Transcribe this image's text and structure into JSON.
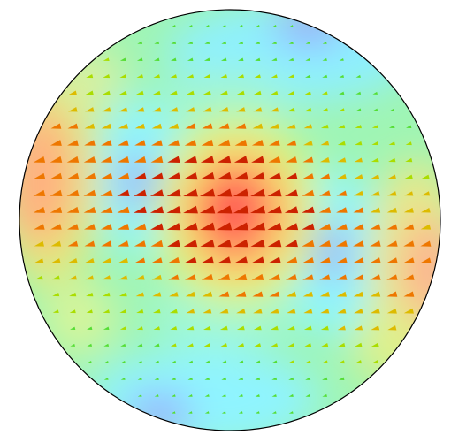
{
  "figure": {
    "kind": "vector field on circular domain with scalar colormap",
    "colormap": [
      "#8888ff",
      "#88ffff",
      "#88ff88",
      "#ffff66",
      "#ffaa66",
      "#ff3333"
    ],
    "arrow_color_scale": [
      "#55dd33",
      "#aadd00",
      "#ddbb00",
      "#ee7700",
      "#cc2200"
    ],
    "boundary_color": "#000000",
    "background": "#ffffff",
    "features": {
      "high_centers": [
        "center",
        "left",
        "right-lower"
      ],
      "low_centers": [
        "top-right",
        "left-center",
        "right-center",
        "bottom-left"
      ]
    }
  }
}
